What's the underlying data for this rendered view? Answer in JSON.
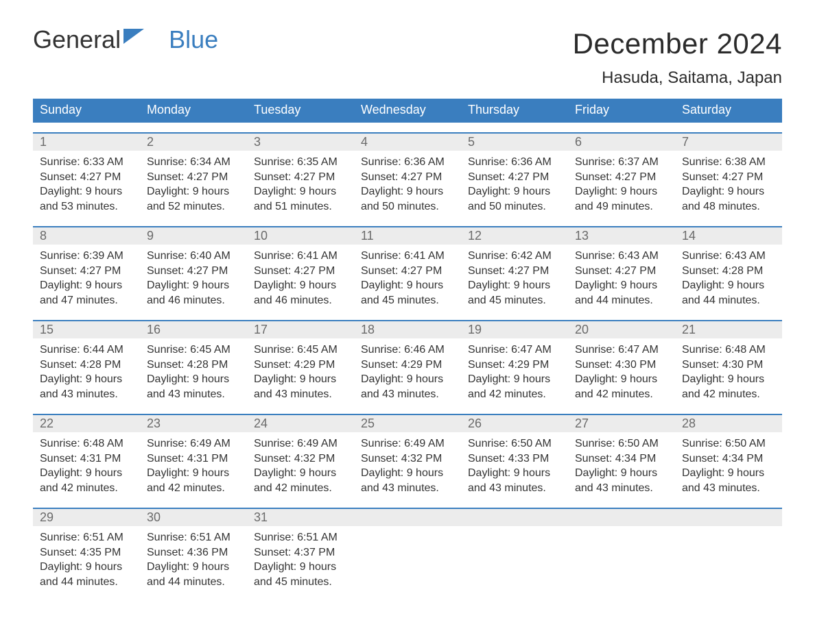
{
  "logo": {
    "text1": "General",
    "text2": "Blue",
    "icon_color": "#3a7ebf"
  },
  "title": "December 2024",
  "location": "Hasuda, Saitama, Japan",
  "colors": {
    "header_bg": "#3a7ebf",
    "header_text": "#ffffff",
    "daynum_bg": "#ececec",
    "daynum_text": "#6a6a6a",
    "body_text": "#333333",
    "week_border": "#3a7ebf",
    "page_bg": "#ffffff"
  },
  "typography": {
    "title_fontsize": 42,
    "location_fontsize": 24,
    "dow_fontsize": 18,
    "daynum_fontsize": 18,
    "info_fontsize": 16
  },
  "days_of_week": [
    "Sunday",
    "Monday",
    "Tuesday",
    "Wednesday",
    "Thursday",
    "Friday",
    "Saturday"
  ],
  "weeks": [
    [
      {
        "n": "1",
        "sunrise": "Sunrise: 6:33 AM",
        "sunset": "Sunset: 4:27 PM",
        "daylight": "Daylight: 9 hours and 53 minutes."
      },
      {
        "n": "2",
        "sunrise": "Sunrise: 6:34 AM",
        "sunset": "Sunset: 4:27 PM",
        "daylight": "Daylight: 9 hours and 52 minutes."
      },
      {
        "n": "3",
        "sunrise": "Sunrise: 6:35 AM",
        "sunset": "Sunset: 4:27 PM",
        "daylight": "Daylight: 9 hours and 51 minutes."
      },
      {
        "n": "4",
        "sunrise": "Sunrise: 6:36 AM",
        "sunset": "Sunset: 4:27 PM",
        "daylight": "Daylight: 9 hours and 50 minutes."
      },
      {
        "n": "5",
        "sunrise": "Sunrise: 6:36 AM",
        "sunset": "Sunset: 4:27 PM",
        "daylight": "Daylight: 9 hours and 50 minutes."
      },
      {
        "n": "6",
        "sunrise": "Sunrise: 6:37 AM",
        "sunset": "Sunset: 4:27 PM",
        "daylight": "Daylight: 9 hours and 49 minutes."
      },
      {
        "n": "7",
        "sunrise": "Sunrise: 6:38 AM",
        "sunset": "Sunset: 4:27 PM",
        "daylight": "Daylight: 9 hours and 48 minutes."
      }
    ],
    [
      {
        "n": "8",
        "sunrise": "Sunrise: 6:39 AM",
        "sunset": "Sunset: 4:27 PM",
        "daylight": "Daylight: 9 hours and 47 minutes."
      },
      {
        "n": "9",
        "sunrise": "Sunrise: 6:40 AM",
        "sunset": "Sunset: 4:27 PM",
        "daylight": "Daylight: 9 hours and 46 minutes."
      },
      {
        "n": "10",
        "sunrise": "Sunrise: 6:41 AM",
        "sunset": "Sunset: 4:27 PM",
        "daylight": "Daylight: 9 hours and 46 minutes."
      },
      {
        "n": "11",
        "sunrise": "Sunrise: 6:41 AM",
        "sunset": "Sunset: 4:27 PM",
        "daylight": "Daylight: 9 hours and 45 minutes."
      },
      {
        "n": "12",
        "sunrise": "Sunrise: 6:42 AM",
        "sunset": "Sunset: 4:27 PM",
        "daylight": "Daylight: 9 hours and 45 minutes."
      },
      {
        "n": "13",
        "sunrise": "Sunrise: 6:43 AM",
        "sunset": "Sunset: 4:27 PM",
        "daylight": "Daylight: 9 hours and 44 minutes."
      },
      {
        "n": "14",
        "sunrise": "Sunrise: 6:43 AM",
        "sunset": "Sunset: 4:28 PM",
        "daylight": "Daylight: 9 hours and 44 minutes."
      }
    ],
    [
      {
        "n": "15",
        "sunrise": "Sunrise: 6:44 AM",
        "sunset": "Sunset: 4:28 PM",
        "daylight": "Daylight: 9 hours and 43 minutes."
      },
      {
        "n": "16",
        "sunrise": "Sunrise: 6:45 AM",
        "sunset": "Sunset: 4:28 PM",
        "daylight": "Daylight: 9 hours and 43 minutes."
      },
      {
        "n": "17",
        "sunrise": "Sunrise: 6:45 AM",
        "sunset": "Sunset: 4:29 PM",
        "daylight": "Daylight: 9 hours and 43 minutes."
      },
      {
        "n": "18",
        "sunrise": "Sunrise: 6:46 AM",
        "sunset": "Sunset: 4:29 PM",
        "daylight": "Daylight: 9 hours and 43 minutes."
      },
      {
        "n": "19",
        "sunrise": "Sunrise: 6:47 AM",
        "sunset": "Sunset: 4:29 PM",
        "daylight": "Daylight: 9 hours and 42 minutes."
      },
      {
        "n": "20",
        "sunrise": "Sunrise: 6:47 AM",
        "sunset": "Sunset: 4:30 PM",
        "daylight": "Daylight: 9 hours and 42 minutes."
      },
      {
        "n": "21",
        "sunrise": "Sunrise: 6:48 AM",
        "sunset": "Sunset: 4:30 PM",
        "daylight": "Daylight: 9 hours and 42 minutes."
      }
    ],
    [
      {
        "n": "22",
        "sunrise": "Sunrise: 6:48 AM",
        "sunset": "Sunset: 4:31 PM",
        "daylight": "Daylight: 9 hours and 42 minutes."
      },
      {
        "n": "23",
        "sunrise": "Sunrise: 6:49 AM",
        "sunset": "Sunset: 4:31 PM",
        "daylight": "Daylight: 9 hours and 42 minutes."
      },
      {
        "n": "24",
        "sunrise": "Sunrise: 6:49 AM",
        "sunset": "Sunset: 4:32 PM",
        "daylight": "Daylight: 9 hours and 42 minutes."
      },
      {
        "n": "25",
        "sunrise": "Sunrise: 6:49 AM",
        "sunset": "Sunset: 4:32 PM",
        "daylight": "Daylight: 9 hours and 43 minutes."
      },
      {
        "n": "26",
        "sunrise": "Sunrise: 6:50 AM",
        "sunset": "Sunset: 4:33 PM",
        "daylight": "Daylight: 9 hours and 43 minutes."
      },
      {
        "n": "27",
        "sunrise": "Sunrise: 6:50 AM",
        "sunset": "Sunset: 4:34 PM",
        "daylight": "Daylight: 9 hours and 43 minutes."
      },
      {
        "n": "28",
        "sunrise": "Sunrise: 6:50 AM",
        "sunset": "Sunset: 4:34 PM",
        "daylight": "Daylight: 9 hours and 43 minutes."
      }
    ],
    [
      {
        "n": "29",
        "sunrise": "Sunrise: 6:51 AM",
        "sunset": "Sunset: 4:35 PM",
        "daylight": "Daylight: 9 hours and 44 minutes."
      },
      {
        "n": "30",
        "sunrise": "Sunrise: 6:51 AM",
        "sunset": "Sunset: 4:36 PM",
        "daylight": "Daylight: 9 hours and 44 minutes."
      },
      {
        "n": "31",
        "sunrise": "Sunrise: 6:51 AM",
        "sunset": "Sunset: 4:37 PM",
        "daylight": "Daylight: 9 hours and 45 minutes."
      },
      null,
      null,
      null,
      null
    ]
  ]
}
